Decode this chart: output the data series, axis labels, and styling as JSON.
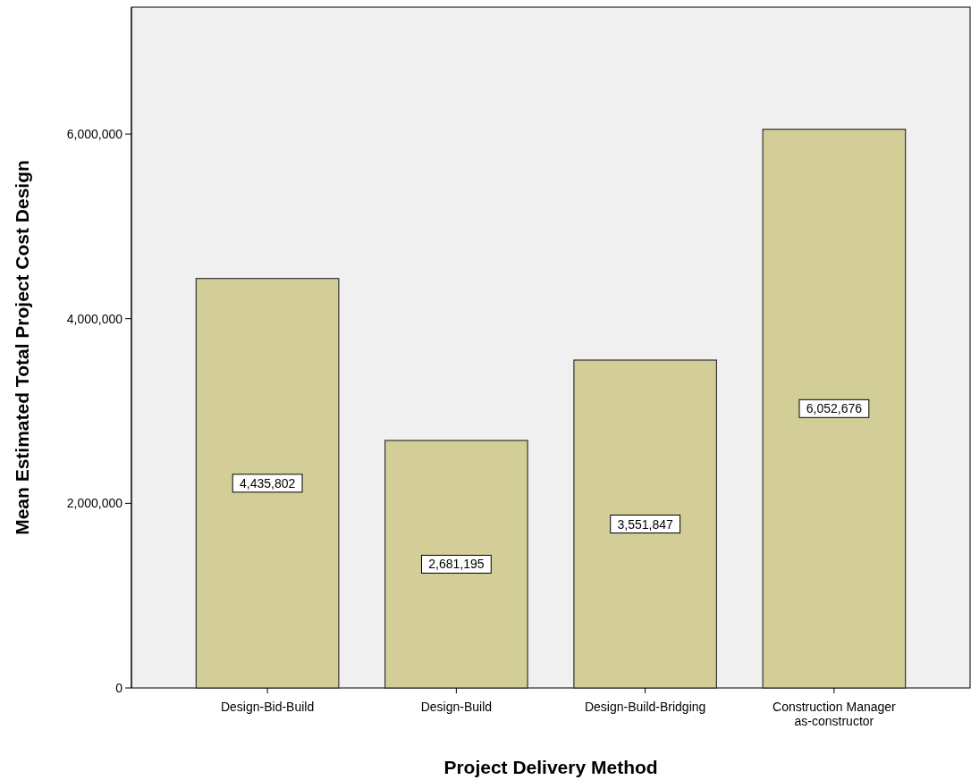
{
  "chart_data": {
    "type": "bar",
    "xlabel": "Project Delivery Method",
    "ylabel": "Mean Estimated Total Project Cost Design",
    "categories": [
      "Design-Bid-Build",
      "Design-Build",
      "Design-Build-Bridging",
      "Construction Manager as-constructor"
    ],
    "values": [
      4435802,
      2681195,
      3551847,
      6052676
    ],
    "color": "#d3ce97",
    "ylim": [
      0,
      7375000
    ],
    "yticks": [
      {
        "value": 0,
        "label": "0"
      },
      {
        "value": 2000000,
        "label": "2,000,000"
      },
      {
        "value": 4000000,
        "label": "4,000,000"
      },
      {
        "value": 6000000,
        "label": "6,000,000"
      }
    ],
    "value_labels": [
      "4,435,802",
      "2,681,195",
      "3,551,847",
      "6,052,676"
    ],
    "grid": false
  }
}
